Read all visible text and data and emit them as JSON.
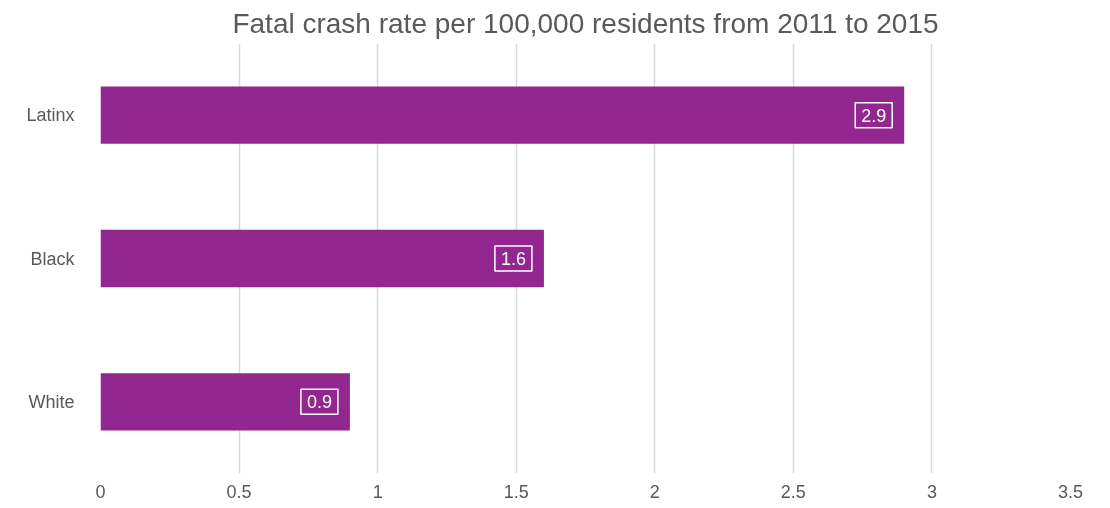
{
  "chart_data": {
    "type": "bar",
    "orientation": "horizontal",
    "title": "Fatal crash rate per 100,000 residents from 2011 to 2015",
    "categories": [
      "Latinx",
      "Black",
      "White"
    ],
    "values": [
      2.9,
      1.6,
      0.9
    ],
    "color": "#92278f",
    "xlim": [
      0,
      3.5
    ],
    "xticks": [
      0,
      0.5,
      1,
      1.5,
      2,
      2.5,
      3,
      3.5
    ],
    "grid": "x",
    "data_labels": true
  }
}
